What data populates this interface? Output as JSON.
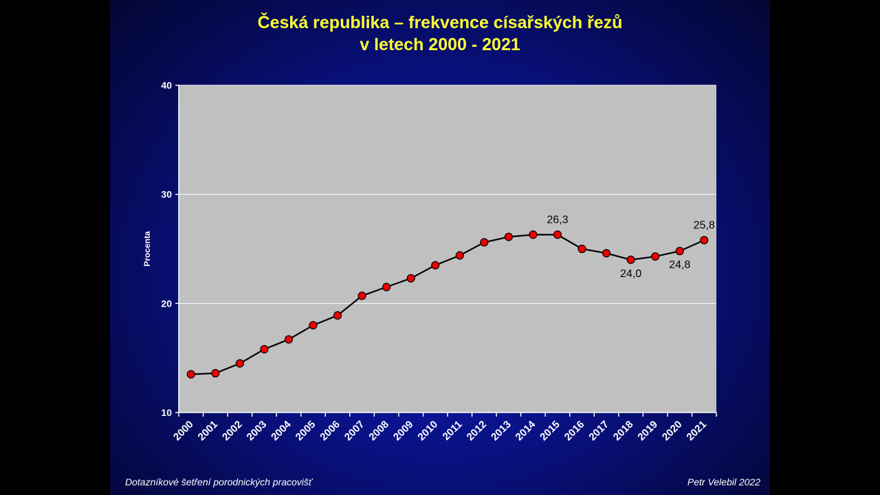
{
  "slide": {
    "title_line1": "Česká republika – frekvence císařských řezů",
    "title_line2": "v letech 2000 - 2021",
    "footer_left": "Dotazníkové šetření porodnických pracovišť",
    "footer_right": "Petr Velebil 2022"
  },
  "colors": {
    "plot_background": "#c0c0c0",
    "title": "#ffff33",
    "marker_fill": "#ee0000",
    "line": "#000000"
  },
  "chart_data": {
    "type": "line",
    "title": "Česká republika – frekvence císařských řezů v letech 2000 - 2021",
    "xlabel": "",
    "ylabel": "Procenta",
    "ylim": [
      10,
      40
    ],
    "yticks": [
      10,
      20,
      30,
      40
    ],
    "grid": true,
    "categories": [
      "2000",
      "2001",
      "2002",
      "2003",
      "2004",
      "2005",
      "2006",
      "2007",
      "2008",
      "2009",
      "2010",
      "2011",
      "2012",
      "2013",
      "2014",
      "2015",
      "2016",
      "2017",
      "2018",
      "2019",
      "2020",
      "2021"
    ],
    "series": [
      {
        "name": "",
        "values": [
          13.5,
          13.6,
          14.5,
          15.8,
          16.7,
          18.0,
          18.9,
          20.7,
          21.5,
          22.3,
          23.5,
          24.4,
          25.6,
          26.1,
          26.3,
          26.3,
          25.0,
          24.6,
          24.0,
          24.3,
          24.8,
          25.8
        ]
      }
    ],
    "annotations": [
      {
        "index": 15,
        "text": "26,3",
        "position": "above"
      },
      {
        "index": 18,
        "text": "24,0",
        "position": "below"
      },
      {
        "index": 20,
        "text": "24,8",
        "position": "below"
      },
      {
        "index": 21,
        "text": "25,8",
        "position": "above"
      }
    ]
  }
}
